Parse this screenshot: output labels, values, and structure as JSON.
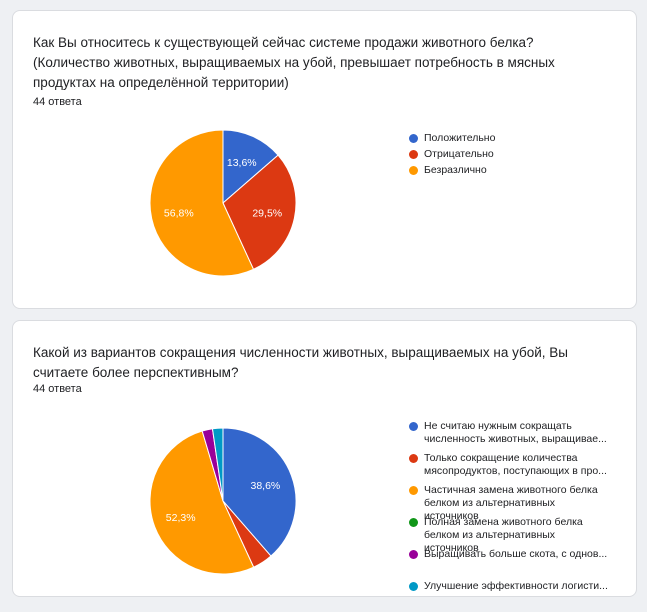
{
  "cards": [
    {
      "question": "Как Вы относитесь к существующей сейчас системе продажи животного белка? (Количество животных, выращиваемых на убой, превышает потребность в мясных продуктах на определённой территории)",
      "responses": "44 ответа"
    },
    {
      "question": "Какой из вариантов сокращения численности животных, выращиваемых на убой, Вы считаете более перспективным?",
      "responses": "44 ответа"
    }
  ],
  "chart_data": [
    {
      "type": "pie",
      "categories": [
        "Положительно",
        "Отрицательно",
        "Безразлично"
      ],
      "values": [
        13.6,
        29.5,
        56.8
      ],
      "data_labels": [
        "13,6%",
        "29,5%",
        "56,8%"
      ],
      "colors": [
        "#3366cc",
        "#dc3912",
        "#ff9900"
      ],
      "legend": "right"
    },
    {
      "type": "pie",
      "categories": [
        "Не считаю нужным сокращать\nчисленность животных, выращивае...",
        "Только сокращение количества\nмясопродуктов, поступающих в про...",
        "Частичная замена животного белка\nбелком из альтернативных источников",
        "Полная замена животного белка\nбелком из альтернативных источников",
        "Выращивать больше скота, с однов...",
        "Улучшение эффективности логисти..."
      ],
      "values": [
        38.6,
        4.5,
        52.3,
        0,
        2.3,
        2.3
      ],
      "data_labels": [
        "38,6%",
        "",
        "52,3%",
        "",
        "",
        ""
      ],
      "colors": [
        "#3366cc",
        "#dc3912",
        "#ff9900",
        "#109618",
        "#990099",
        "#0099c6"
      ],
      "legend": "right"
    }
  ]
}
